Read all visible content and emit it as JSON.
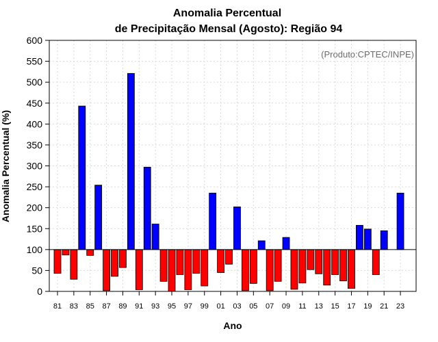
{
  "chart_data": {
    "type": "bar",
    "title_line1": "Anomalia Percentual",
    "title_line2": "de Precipitação Mensal (Agosto): Região 94",
    "credit": "(Produto:CPTEC/INPE)",
    "xlabel": "Ano",
    "ylabel": "Anomalia Percentual (%)",
    "ylim": [
      0,
      600
    ],
    "yticks": [
      0,
      50,
      100,
      150,
      200,
      250,
      300,
      350,
      400,
      450,
      500,
      550,
      600
    ],
    "baseline": 100,
    "grid": true,
    "categories": [
      "1981",
      "1982",
      "1983",
      "1984",
      "1985",
      "1986",
      "1987",
      "1988",
      "1989",
      "1990",
      "1991",
      "1992",
      "1993",
      "1994",
      "1995",
      "1996",
      "1997",
      "1998",
      "1999",
      "2000",
      "2001",
      "2002",
      "2003",
      "2004",
      "2005",
      "2006",
      "2007",
      "2008",
      "2009",
      "2010",
      "2011",
      "2012",
      "2013",
      "2014",
      "2015",
      "2016",
      "2017",
      "2018",
      "2019",
      "2020",
      "2021",
      "2022",
      "2023"
    ],
    "values": [
      43,
      87,
      29,
      443,
      86,
      254,
      2,
      36,
      57,
      521,
      4,
      297,
      161,
      24,
      0,
      40,
      4,
      43,
      13,
      235,
      45,
      65,
      202,
      2,
      19,
      121,
      2,
      24,
      129,
      5,
      20,
      52,
      42,
      15,
      40,
      25,
      7,
      158,
      149,
      40,
      145,
      100,
      235
    ],
    "xtick_labels": [
      "81",
      "83",
      "85",
      "87",
      "89",
      "91",
      "93",
      "95",
      "97",
      "99",
      "01",
      "03",
      "05",
      "07",
      "09",
      "11",
      "13",
      "15",
      "17",
      "19",
      "21",
      "23"
    ],
    "colors": {
      "above": "#0000ff",
      "below": "#ff0000",
      "grid": "#d9d9d9",
      "axis": "#000000"
    }
  }
}
